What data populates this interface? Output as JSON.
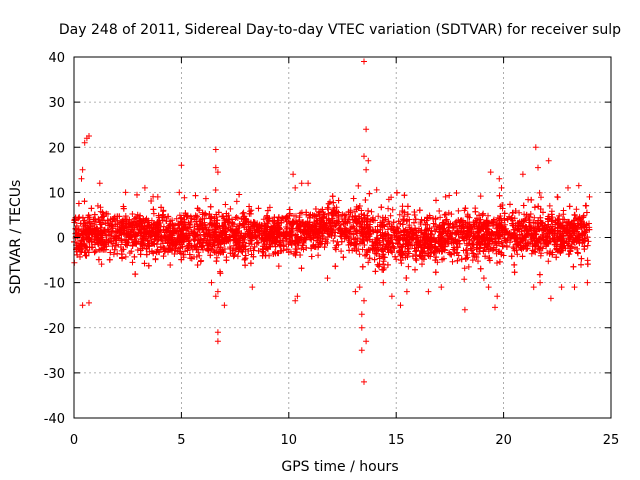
{
  "chart_data": {
    "type": "scatter",
    "title": "Day 248 of 2011, Sidereal Day-to-day VTEC variation (SDTVAR) for receiver sulp",
    "xlabel": "GPS time / hours",
    "ylabel": "SDTVAR / TECUs",
    "xlim": [
      0,
      25
    ],
    "ylim": [
      -40,
      40
    ],
    "x_ticks": [
      0,
      5,
      10,
      15,
      20,
      25
    ],
    "y_ticks": [
      -40,
      -30,
      -20,
      -10,
      0,
      10,
      20,
      30,
      40
    ],
    "x_tick_labels": [
      "0",
      "5",
      "10",
      "15",
      "20",
      "25"
    ],
    "y_tick_labels": [
      "-40",
      "-30",
      "-20",
      "-10",
      "0",
      "10",
      "20",
      "30",
      "40"
    ],
    "grid": true,
    "marker": "+",
    "point_color": "#ff0000",
    "series": [
      {
        "name": "SDTVAR",
        "data_range_x": [
          0,
          24
        ],
        "dense_band": [
          {
            "x": 0.0,
            "lo": -6,
            "hi": 7
          },
          {
            "x": 3.0,
            "lo": -6,
            "hi": 8
          },
          {
            "x": 6.5,
            "lo": -7,
            "hi": 8
          },
          {
            "x": 9.5,
            "lo": -5,
            "hi": 7
          },
          {
            "x": 11.0,
            "lo": -5,
            "hi": 8
          },
          {
            "x": 11.8,
            "lo": -3,
            "hi": 9
          },
          {
            "x": 12.5,
            "lo": -5,
            "hi": 10
          },
          {
            "x": 14.0,
            "lo": -8,
            "hi": 8
          },
          {
            "x": 15.5,
            "lo": -8,
            "hi": 7
          },
          {
            "x": 18.5,
            "lo": -7,
            "hi": 8
          },
          {
            "x": 21.0,
            "lo": -6,
            "hi": 8
          },
          {
            "x": 24.0,
            "lo": -6,
            "hi": 7
          }
        ],
        "outliers": [
          [
            0.4,
            15
          ],
          [
            0.5,
            21
          ],
          [
            0.6,
            22
          ],
          [
            0.7,
            22.5
          ],
          [
            0.4,
            -15
          ],
          [
            0.7,
            -14.5
          ],
          [
            0.35,
            13
          ],
          [
            1.2,
            12
          ],
          [
            2.4,
            10
          ],
          [
            3.3,
            11
          ],
          [
            3.9,
            9
          ],
          [
            4.9,
            10
          ],
          [
            5.0,
            16
          ],
          [
            6.6,
            19.5
          ],
          [
            6.6,
            15.5
          ],
          [
            6.7,
            14.5
          ],
          [
            6.6,
            -13
          ],
          [
            6.7,
            -12
          ],
          [
            6.7,
            -21
          ],
          [
            6.7,
            -23
          ],
          [
            7.0,
            -15
          ],
          [
            6.4,
            -10
          ],
          [
            8.3,
            -11
          ],
          [
            10.2,
            14
          ],
          [
            10.3,
            11
          ],
          [
            10.6,
            12
          ],
          [
            10.9,
            12
          ],
          [
            10.3,
            -14
          ],
          [
            10.4,
            -13
          ],
          [
            11.8,
            -9
          ],
          [
            13.5,
            39
          ],
          [
            13.6,
            24
          ],
          [
            13.5,
            18
          ],
          [
            13.7,
            17
          ],
          [
            13.6,
            15
          ],
          [
            13.5,
            -14
          ],
          [
            13.4,
            -17
          ],
          [
            13.4,
            -20
          ],
          [
            13.6,
            -23
          ],
          [
            13.4,
            -25
          ],
          [
            13.5,
            -32
          ],
          [
            13.3,
            -11
          ],
          [
            13.1,
            -12
          ],
          [
            14.4,
            -10
          ],
          [
            14.8,
            -13
          ],
          [
            15.2,
            -15
          ],
          [
            15.5,
            -12
          ],
          [
            16.5,
            -12
          ],
          [
            17.1,
            -11
          ],
          [
            18.2,
            -16
          ],
          [
            19.6,
            -15.5
          ],
          [
            19.3,
            -11
          ],
          [
            19.7,
            -13
          ],
          [
            19.4,
            14.5
          ],
          [
            19.8,
            13
          ],
          [
            19.9,
            11
          ],
          [
            20.9,
            14
          ],
          [
            21.5,
            20
          ],
          [
            21.6,
            15.5
          ],
          [
            22.1,
            17
          ],
          [
            21.4,
            -11
          ],
          [
            21.7,
            -10
          ],
          [
            22.2,
            -13.5
          ],
          [
            22.7,
            -11
          ],
          [
            23.3,
            -11
          ],
          [
            23.0,
            11
          ],
          [
            23.5,
            11.5
          ],
          [
            24.0,
            9
          ],
          [
            23.9,
            -10
          ],
          [
            22.5,
            9
          ],
          [
            17.3,
            9
          ]
        ]
      }
    ]
  }
}
